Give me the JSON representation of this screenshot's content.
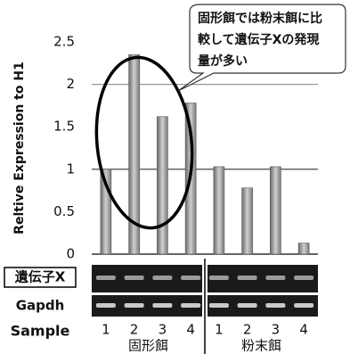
{
  "chart_data": {
    "type": "bar",
    "y_label": "Reltive Expression to H1",
    "categories": [
      "1",
      "2",
      "3",
      "4",
      "1",
      "2",
      "3",
      "4"
    ],
    "groups": [
      "固形餌",
      "粉末餌"
    ],
    "values": [
      1.0,
      2.35,
      1.62,
      1.78,
      1.03,
      0.78,
      1.03,
      0.13
    ],
    "color": "#999999",
    "ylim": [
      0,
      2.5
    ],
    "yticks": [
      0,
      0.5,
      1,
      1.5,
      2,
      2.5
    ],
    "hlines": [
      1,
      2
    ]
  },
  "annotation": {
    "lines": [
      "固形餌では粉末餌に比",
      "較して遺伝子Xの発現",
      "量が多い"
    ]
  },
  "gel": {
    "rows": [
      "遺伝子X",
      "Gapdh"
    ],
    "sample_label": "Sample"
  }
}
